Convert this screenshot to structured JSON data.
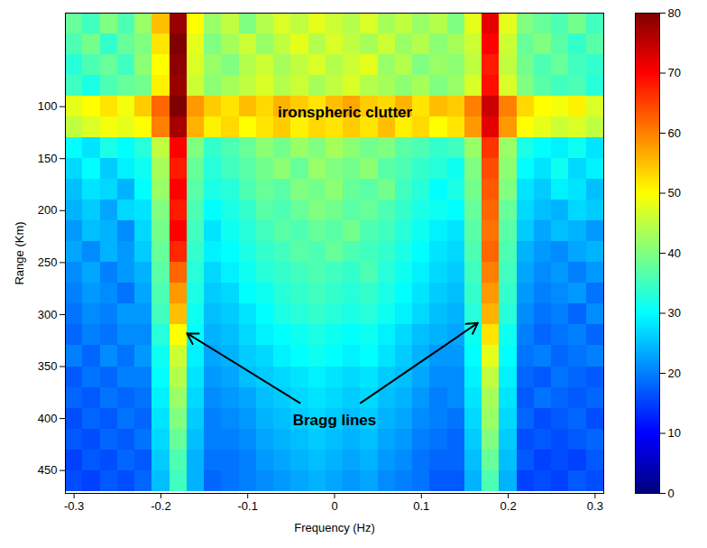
{
  "chart_data": {
    "type": "heatmap",
    "xlabel": "Frequency (Hz)",
    "ylabel": "Range (Km)",
    "xlim": [
      -0.31,
      0.31
    ],
    "ylim": [
      10,
      472
    ],
    "xticks": [
      -0.3,
      -0.2,
      -0.1,
      0,
      0.1,
      0.2,
      0.3
    ],
    "yticks": [
      100,
      150,
      200,
      250,
      300,
      350,
      400,
      450
    ],
    "x": [
      -0.3,
      -0.28,
      -0.26,
      -0.24,
      -0.22,
      -0.2,
      -0.18,
      -0.16,
      -0.14,
      -0.12,
      -0.1,
      -0.08,
      -0.06,
      -0.04,
      -0.02,
      0,
      0.02,
      0.04,
      0.06,
      0.08,
      0.1,
      0.12,
      0.14,
      0.16,
      0.18,
      0.2,
      0.22,
      0.24,
      0.26,
      0.28,
      0.3
    ],
    "y": [
      20,
      40,
      60,
      80,
      100,
      120,
      140,
      160,
      180,
      200,
      220,
      240,
      260,
      280,
      300,
      320,
      340,
      360,
      380,
      400,
      420,
      440,
      460
    ],
    "cells": [
      [
        38,
        35,
        40,
        36,
        42,
        55,
        78,
        50,
        42,
        45,
        40,
        44,
        47,
        45,
        48,
        46,
        44,
        47,
        43,
        45,
        42,
        44,
        40,
        48,
        72,
        48,
        40,
        38,
        36,
        39,
        35
      ],
      [
        36,
        39,
        34,
        38,
        40,
        52,
        80,
        48,
        40,
        43,
        46,
        42,
        45,
        48,
        44,
        47,
        45,
        43,
        46,
        42,
        44,
        41,
        43,
        46,
        70,
        46,
        38,
        40,
        37,
        34,
        37
      ],
      [
        33,
        36,
        38,
        35,
        41,
        50,
        79,
        47,
        42,
        40,
        44,
        46,
        43,
        45,
        47,
        44,
        46,
        48,
        42,
        44,
        40,
        42,
        41,
        45,
        68,
        45,
        39,
        36,
        38,
        35,
        34
      ],
      [
        35,
        32,
        36,
        38,
        39,
        51,
        78,
        46,
        41,
        43,
        45,
        47,
        44,
        46,
        43,
        45,
        47,
        44,
        43,
        41,
        43,
        40,
        42,
        47,
        69,
        47,
        40,
        37,
        35,
        36,
        33
      ],
      [
        48,
        50,
        52,
        49,
        54,
        62,
        80,
        58,
        54,
        52,
        55,
        53,
        56,
        54,
        52,
        55,
        57,
        54,
        53,
        56,
        52,
        55,
        54,
        60,
        74,
        60,
        53,
        50,
        49,
        51,
        47
      ],
      [
        45,
        47,
        49,
        48,
        50,
        60,
        77,
        56,
        51,
        53,
        50,
        52,
        54,
        51,
        53,
        52,
        54,
        52,
        55,
        51,
        53,
        50,
        52,
        58,
        72,
        58,
        50,
        48,
        46,
        47,
        45
      ],
      [
        30,
        28,
        32,
        30,
        33,
        45,
        70,
        40,
        34,
        36,
        38,
        41,
        39,
        42,
        40,
        43,
        41,
        39,
        40,
        37,
        36,
        34,
        35,
        42,
        66,
        42,
        32,
        30,
        29,
        31,
        28
      ],
      [
        27,
        30,
        26,
        29,
        31,
        43,
        68,
        38,
        33,
        35,
        37,
        39,
        41,
        38,
        42,
        40,
        39,
        41,
        37,
        36,
        34,
        33,
        31,
        40,
        64,
        41,
        30,
        28,
        31,
        27,
        29
      ],
      [
        25,
        28,
        27,
        24,
        30,
        42,
        70,
        37,
        32,
        33,
        36,
        38,
        37,
        40,
        39,
        41,
        38,
        37,
        39,
        35,
        33,
        30,
        32,
        39,
        63,
        40,
        28,
        26,
        29,
        28,
        25
      ],
      [
        24,
        26,
        23,
        27,
        28,
        40,
        68,
        36,
        30,
        32,
        34,
        37,
        36,
        38,
        40,
        39,
        37,
        38,
        36,
        34,
        32,
        31,
        30,
        38,
        62,
        38,
        27,
        25,
        24,
        27,
        26
      ],
      [
        22,
        25,
        24,
        21,
        27,
        39,
        70,
        35,
        28,
        31,
        33,
        35,
        37,
        36,
        38,
        37,
        39,
        36,
        35,
        33,
        31,
        29,
        28,
        37,
        61,
        37,
        26,
        23,
        25,
        24,
        22
      ],
      [
        23,
        21,
        24,
        22,
        26,
        38,
        67,
        34,
        29,
        30,
        32,
        34,
        35,
        37,
        36,
        38,
        36,
        35,
        34,
        32,
        30,
        28,
        27,
        36,
        62,
        36,
        24,
        22,
        21,
        23,
        24
      ],
      [
        21,
        23,
        20,
        22,
        24,
        37,
        62,
        33,
        27,
        29,
        31,
        33,
        34,
        35,
        36,
        35,
        34,
        36,
        33,
        31,
        29,
        27,
        26,
        35,
        60,
        35,
        23,
        21,
        22,
        20,
        22
      ],
      [
        20,
        22,
        21,
        19,
        23,
        36,
        58,
        32,
        26,
        27,
        30,
        31,
        33,
        34,
        35,
        34,
        33,
        34,
        32,
        30,
        28,
        26,
        25,
        34,
        58,
        34,
        22,
        20,
        21,
        22,
        19
      ],
      [
        19,
        21,
        20,
        22,
        22,
        35,
        55,
        31,
        25,
        26,
        28,
        30,
        32,
        33,
        34,
        33,
        32,
        33,
        31,
        29,
        27,
        25,
        24,
        33,
        56,
        33,
        21,
        19,
        20,
        18,
        21
      ],
      [
        18,
        20,
        19,
        21,
        21,
        33,
        50,
        30,
        24,
        25,
        27,
        29,
        30,
        31,
        32,
        31,
        30,
        31,
        29,
        27,
        25,
        24,
        23,
        31,
        52,
        31,
        20,
        18,
        19,
        20,
        18
      ],
      [
        20,
        18,
        21,
        19,
        22,
        31,
        46,
        29,
        23,
        24,
        26,
        27,
        29,
        30,
        31,
        30,
        29,
        30,
        28,
        26,
        24,
        22,
        22,
        30,
        48,
        30,
        19,
        20,
        18,
        19,
        20
      ],
      [
        17,
        19,
        18,
        20,
        20,
        30,
        44,
        28,
        22,
        23,
        25,
        26,
        27,
        28,
        29,
        28,
        27,
        28,
        26,
        25,
        23,
        21,
        21,
        29,
        45,
        29,
        18,
        17,
        19,
        18,
        17
      ],
      [
        18,
        17,
        19,
        18,
        19,
        29,
        42,
        27,
        21,
        22,
        23,
        25,
        26,
        27,
        28,
        27,
        26,
        27,
        25,
        24,
        22,
        20,
        21,
        28,
        43,
        28,
        17,
        19,
        18,
        17,
        18
      ],
      [
        16,
        18,
        17,
        19,
        18,
        28,
        40,
        26,
        20,
        21,
        22,
        24,
        25,
        26,
        27,
        26,
        25,
        26,
        24,
        23,
        21,
        20,
        19,
        27,
        42,
        27,
        18,
        16,
        17,
        18,
        16
      ],
      [
        17,
        16,
        18,
        17,
        19,
        27,
        38,
        25,
        20,
        20,
        21,
        23,
        24,
        25,
        26,
        25,
        24,
        25,
        23,
        22,
        20,
        19,
        18,
        26,
        40,
        26,
        16,
        17,
        16,
        17,
        18
      ],
      [
        15,
        17,
        16,
        18,
        17,
        26,
        36,
        24,
        19,
        19,
        20,
        22,
        23,
        24,
        25,
        24,
        23,
        24,
        22,
        21,
        19,
        18,
        18,
        25,
        38,
        25,
        17,
        15,
        16,
        15,
        17
      ],
      [
        16,
        15,
        17,
        16,
        18,
        25,
        35,
        24,
        18,
        19,
        20,
        21,
        22,
        23,
        24,
        23,
        22,
        23,
        21,
        20,
        19,
        17,
        17,
        24,
        36,
        24,
        15,
        16,
        15,
        17,
        16
      ]
    ],
    "colorbar": {
      "lim": [
        0,
        80
      ],
      "ticks": [
        0,
        10,
        20,
        30,
        40,
        50,
        60,
        70,
        80
      ]
    },
    "annotations": [
      {
        "text": "ironspheric clutter",
        "x": 0.012,
        "y": 106
      },
      {
        "text": "Bragg lines",
        "x": 0.0,
        "y": 402,
        "arrows": [
          {
            "x1": -0.04,
            "y1": 385,
            "x2": -0.17,
            "y2": 318
          },
          {
            "x1": 0.03,
            "y1": 385,
            "x2": 0.165,
            "y2": 308
          }
        ]
      }
    ]
  }
}
